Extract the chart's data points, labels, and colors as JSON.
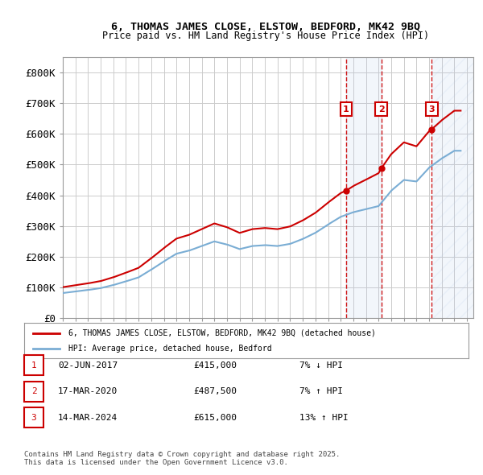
{
  "title1": "6, THOMAS JAMES CLOSE, ELSTOW, BEDFORD, MK42 9BQ",
  "title2": "Price paid vs. HM Land Registry's House Price Index (HPI)",
  "ylabel": "",
  "xlabel": "",
  "ytick_labels": [
    "£0",
    "£100K",
    "£200K",
    "£300K",
    "£400K",
    "£500K",
    "£600K",
    "£700K",
    "£800K"
  ],
  "ytick_values": [
    0,
    100000,
    200000,
    300000,
    400000,
    500000,
    600000,
    700000,
    800000
  ],
  "ylim": [
    0,
    850000
  ],
  "xlim_start": 1995.0,
  "xlim_end": 2027.5,
  "transaction1_date": 2017.42,
  "transaction2_date": 2020.21,
  "transaction3_date": 2024.21,
  "transaction1_price": 415000,
  "transaction2_price": 487500,
  "transaction3_price": 615000,
  "hpi_color": "#aec6e8",
  "price_color": "#cc0000",
  "legend_line1": "6, THOMAS JAMES CLOSE, ELSTOW, BEDFORD, MK42 9BQ (detached house)",
  "legend_line2": "HPI: Average price, detached house, Bedford",
  "table_rows": [
    {
      "num": "1",
      "date": "02-JUN-2017",
      "price": "£415,000",
      "hpi": "7% ↓ HPI"
    },
    {
      "num": "2",
      "date": "17-MAR-2020",
      "price": "£487,500",
      "hpi": "7% ↑ HPI"
    },
    {
      "num": "3",
      "date": "14-MAR-2024",
      "price": "£615,000",
      "hpi": "13% ↑ HPI"
    }
  ],
  "footnote": "Contains HM Land Registry data © Crown copyright and database right 2025.\nThis data is licensed under the Open Government Licence v3.0.",
  "bg_color": "#ffffff",
  "grid_color": "#cccccc",
  "future_hatch_color": "#aec6e8"
}
